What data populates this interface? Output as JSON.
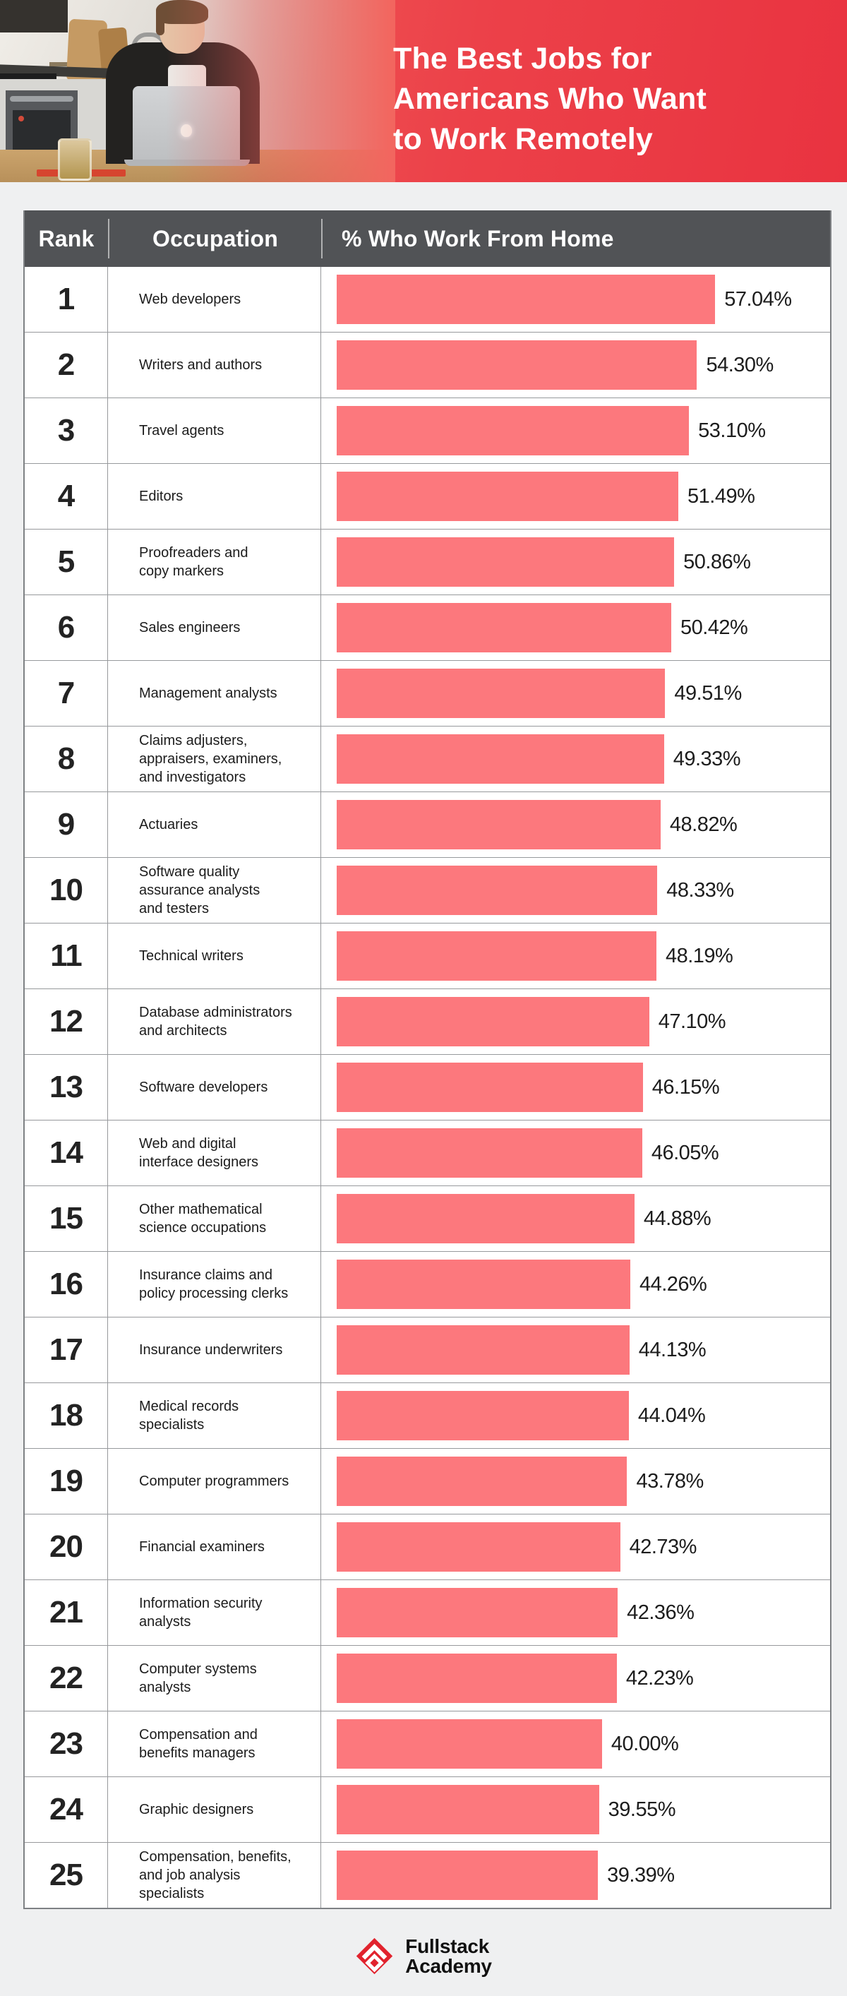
{
  "header": {
    "title_lines": [
      "The Best Jobs for",
      "Americans Who Want",
      "to Work Remotely"
    ],
    "photo": "man-working-on-laptop-in-kitchen",
    "colors": {
      "red_left": "#F2685F",
      "red_right": "#E93340"
    }
  },
  "table": {
    "columns": [
      "Rank",
      "Occupation",
      "% Who Work From Home"
    ],
    "header_bg": "#515356",
    "bar_color": "#FC787D",
    "rows": [
      {
        "rank": "1",
        "occupation": "Web developers",
        "label": "57.04%",
        "value": 57.04
      },
      {
        "rank": "2",
        "occupation": "Writers and authors",
        "label": "54.30%",
        "value": 54.3
      },
      {
        "rank": "3",
        "occupation": "Travel agents",
        "label": "53.10%",
        "value": 53.1
      },
      {
        "rank": "4",
        "occupation": "Editors",
        "label": "51.49%",
        "value": 51.49
      },
      {
        "rank": "5",
        "occupation": "Proofreaders and\ncopy markers",
        "label": "50.86%",
        "value": 50.86
      },
      {
        "rank": "6",
        "occupation": "Sales engineers",
        "label": "50.42%",
        "value": 50.42
      },
      {
        "rank": "7",
        "occupation": "Management analysts",
        "label": "49.51%",
        "value": 49.51
      },
      {
        "rank": "8",
        "occupation": "Claims adjusters,\nappraisers, examiners,\nand investigators",
        "label": "49.33%",
        "value": 49.33
      },
      {
        "rank": "9",
        "occupation": "Actuaries",
        "label": "48.82%",
        "value": 48.82
      },
      {
        "rank": "10",
        "occupation": "Software quality\nassurance analysts\nand testers",
        "label": "48.33%",
        "value": 48.33
      },
      {
        "rank": "11",
        "occupation": "Technical writers",
        "label": "48.19%",
        "value": 48.19
      },
      {
        "rank": "12",
        "occupation": "Database administrators\nand architects",
        "label": "47.10%",
        "value": 47.1
      },
      {
        "rank": "13",
        "occupation": "Software developers",
        "label": "46.15%",
        "value": 46.15
      },
      {
        "rank": "14",
        "occupation": "Web and digital\ninterface designers",
        "label": "46.05%",
        "value": 46.05
      },
      {
        "rank": "15",
        "occupation": "Other mathematical\nscience occupations",
        "label": "44.88%",
        "value": 44.88
      },
      {
        "rank": "16",
        "occupation": "Insurance claims and\npolicy processing clerks",
        "label": "44.26%",
        "value": 44.26
      },
      {
        "rank": "17",
        "occupation": "Insurance underwriters",
        "label": "44.13%",
        "value": 44.13
      },
      {
        "rank": "18",
        "occupation": "Medical records\nspecialists",
        "label": "44.04%",
        "value": 44.04
      },
      {
        "rank": "19",
        "occupation": "Computer programmers",
        "label": "43.78%",
        "value": 43.78
      },
      {
        "rank": "20",
        "occupation": "Financial examiners",
        "label": "42.73%",
        "value": 42.73
      },
      {
        "rank": "21",
        "occupation": "Information security\nanalysts",
        "label": "42.36%",
        "value": 42.36
      },
      {
        "rank": "22",
        "occupation": "Computer systems\nanalysts",
        "label": "42.23%",
        "value": 42.23
      },
      {
        "rank": "23",
        "occupation": "Compensation and\nbenefits managers",
        "label": "40.00%",
        "value": 40.0
      },
      {
        "rank": "24",
        "occupation": "Graphic designers",
        "label": "39.55%",
        "value": 39.55
      },
      {
        "rank": "25",
        "occupation": "Compensation, benefits,\nand job analysis\nspecialists",
        "label": "39.39%",
        "value": 39.39
      }
    ]
  },
  "chart_data": {
    "type": "bar",
    "orientation": "horizontal",
    "title": "The Best Jobs for Americans Who Want to Work Remotely",
    "xlabel": "% Who Work From Home",
    "ylabel": "Occupation",
    "xlim": [
      0,
      60
    ],
    "bar_color": "#FC787D",
    "categories": [
      "Web developers",
      "Writers and authors",
      "Travel agents",
      "Editors",
      "Proofreaders and copy markers",
      "Sales engineers",
      "Management analysts",
      "Claims adjusters, appraisers, examiners, and investigators",
      "Actuaries",
      "Software quality assurance analysts and testers",
      "Technical writers",
      "Database administrators and architects",
      "Software developers",
      "Web and digital interface designers",
      "Other mathematical science occupations",
      "Insurance claims and policy processing clerks",
      "Insurance underwriters",
      "Medical records specialists",
      "Computer programmers",
      "Financial examiners",
      "Information security analysts",
      "Computer systems analysts",
      "Compensation and benefits managers",
      "Graphic designers",
      "Compensation, benefits, and job analysis specialists"
    ],
    "values": [
      57.04,
      54.3,
      53.1,
      51.49,
      50.86,
      50.42,
      49.51,
      49.33,
      48.82,
      48.33,
      48.19,
      47.1,
      46.15,
      46.05,
      44.88,
      44.26,
      44.13,
      44.04,
      43.78,
      42.73,
      42.36,
      42.23,
      40.0,
      39.55,
      39.39
    ]
  },
  "footer": {
    "logo_line1": "Fullstack",
    "logo_line2": "Academy",
    "logo_color": "#E1232E"
  }
}
